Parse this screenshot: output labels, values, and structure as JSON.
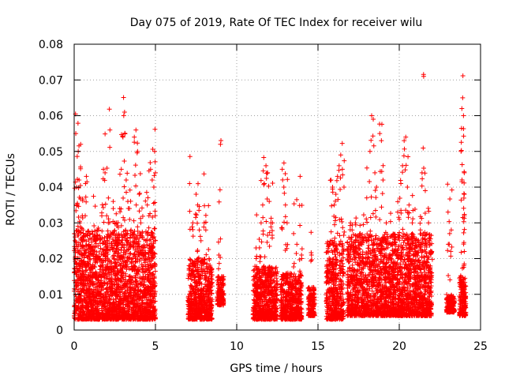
{
  "chart_data": {
    "type": "scatter",
    "title": "Day 075 of 2019, Rate Of TEC Index for receiver wilu",
    "xlabel": "GPS time / hours",
    "ylabel": "ROTI / TECUs",
    "xlim": [
      0,
      25
    ],
    "ylim": [
      0,
      0.08
    ],
    "xticks": [
      0,
      5,
      10,
      15,
      20,
      25
    ],
    "xtick_labels": [
      "0",
      "5",
      "10",
      "15",
      "20",
      "25"
    ],
    "yticks": [
      0,
      0.01,
      0.02,
      0.03,
      0.04,
      0.05,
      0.06,
      0.07,
      0.08
    ],
    "ytick_labels": [
      "0",
      "0.01",
      "0.02",
      "0.03",
      "0.04",
      "0.05",
      "0.06",
      "0.07",
      "0.08"
    ],
    "grid": true,
    "marker": "+",
    "marker_color": "#ff0000",
    "series": [
      {
        "name": "ROTI",
        "points": [
          [
            0.05,
            0.025
          ],
          [
            0.1,
            0.055
          ],
          [
            0.15,
            0.04
          ],
          [
            0.2,
            0.035
          ],
          [
            0.25,
            0.05
          ],
          [
            0.3,
            0.042
          ],
          [
            0.35,
            0.03
          ],
          [
            0.4,
            0.052
          ],
          [
            0.5,
            0.032
          ],
          [
            0.55,
            0.028
          ],
          [
            0.6,
            0.021
          ],
          [
            0.7,
            0.041
          ],
          [
            0.75,
            0.043
          ],
          [
            0.8,
            0.018
          ],
          [
            0.9,
            0.015
          ],
          [
            1.0,
            0.022
          ],
          [
            1.2,
            0.026
          ],
          [
            1.3,
            0.025
          ],
          [
            1.5,
            0.02
          ],
          [
            1.6,
            0.018
          ],
          [
            1.7,
            0.032
          ],
          [
            1.8,
            0.045
          ],
          [
            1.9,
            0.044
          ],
          [
            2.0,
            0.032
          ],
          [
            2.1,
            0.03
          ],
          [
            2.2,
            0.056
          ],
          [
            2.4,
            0.036
          ],
          [
            2.5,
            0.03
          ],
          [
            2.6,
            0.03
          ],
          [
            2.7,
            0.026
          ],
          [
            2.8,
            0.034
          ],
          [
            2.9,
            0.045
          ],
          [
            3.0,
            0.054
          ],
          [
            3.05,
            0.06
          ],
          [
            3.1,
            0.061
          ],
          [
            3.2,
            0.042
          ],
          [
            3.3,
            0.036
          ],
          [
            3.4,
            0.034
          ],
          [
            3.5,
            0.028
          ],
          [
            3.6,
            0.02
          ],
          [
            3.7,
            0.054
          ],
          [
            3.8,
            0.056
          ],
          [
            3.9,
            0.05
          ],
          [
            4.0,
            0.038
          ],
          [
            4.1,
            0.03
          ],
          [
            4.2,
            0.026
          ],
          [
            4.4,
            0.025
          ],
          [
            4.5,
            0.035
          ],
          [
            4.6,
            0.032
          ],
          [
            4.7,
            0.045
          ],
          [
            4.8,
            0.042
          ],
          [
            4.9,
            0.04
          ],
          [
            4.95,
            0.05
          ],
          [
            5.0,
            0.044
          ],
          [
            7.1,
            0.041
          ],
          [
            7.3,
            0.03
          ],
          [
            7.5,
            0.038
          ],
          [
            7.6,
            0.035
          ],
          [
            7.7,
            0.028
          ],
          [
            7.8,
            0.025
          ],
          [
            8.0,
            0.03
          ],
          [
            8.1,
            0.028
          ],
          [
            8.3,
            0.02
          ],
          [
            8.9,
            0.021
          ],
          [
            9.0,
            0.052
          ],
          [
            11.2,
            0.02
          ],
          [
            11.4,
            0.023
          ],
          [
            11.5,
            0.03
          ],
          [
            11.6,
            0.035
          ],
          [
            11.7,
            0.041
          ],
          [
            11.8,
            0.046
          ],
          [
            11.9,
            0.044
          ],
          [
            12.0,
            0.036
          ],
          [
            12.1,
            0.03
          ],
          [
            12.2,
            0.03
          ],
          [
            12.8,
            0.045
          ],
          [
            12.9,
            0.04
          ],
          [
            13.0,
            0.035
          ],
          [
            13.1,
            0.03
          ],
          [
            13.5,
            0.027
          ],
          [
            13.7,
            0.024
          ],
          [
            13.9,
            0.043
          ],
          [
            14.0,
            0.02
          ],
          [
            14.6,
            0.021
          ],
          [
            15.8,
            0.042
          ],
          [
            15.9,
            0.04
          ],
          [
            16.0,
            0.035
          ],
          [
            16.1,
            0.038
          ],
          [
            16.2,
            0.043
          ],
          [
            16.3,
            0.046
          ],
          [
            16.4,
            0.049
          ],
          [
            16.5,
            0.045
          ],
          [
            16.6,
            0.04
          ],
          [
            17.0,
            0.03
          ],
          [
            17.1,
            0.028
          ],
          [
            17.3,
            0.03
          ],
          [
            17.6,
            0.027
          ],
          [
            17.8,
            0.025
          ],
          [
            18.0,
            0.037
          ],
          [
            18.2,
            0.05
          ],
          [
            18.3,
            0.06
          ],
          [
            18.4,
            0.059
          ],
          [
            18.5,
            0.044
          ],
          [
            18.6,
            0.04
          ],
          [
            18.8,
            0.055
          ],
          [
            18.9,
            0.053
          ],
          [
            19.0,
            0.042
          ],
          [
            19.2,
            0.03
          ],
          [
            19.5,
            0.02
          ],
          [
            19.7,
            0.022
          ],
          [
            19.9,
            0.033
          ],
          [
            20.0,
            0.031
          ],
          [
            20.1,
            0.041
          ],
          [
            20.2,
            0.046
          ],
          [
            20.3,
            0.053
          ],
          [
            20.4,
            0.054
          ],
          [
            20.5,
            0.04
          ],
          [
            20.6,
            0.035
          ],
          [
            20.8,
            0.03
          ],
          [
            21.0,
            0.022
          ],
          [
            21.3,
            0.028
          ],
          [
            21.4,
            0.044
          ],
          [
            21.5,
            0.071
          ],
          [
            21.6,
            0.039
          ],
          [
            21.8,
            0.03
          ],
          [
            22.0,
            0.022
          ],
          [
            23.0,
            0.033
          ],
          [
            23.1,
            0.027
          ],
          [
            23.2,
            0.028
          ],
          [
            23.8,
            0.05
          ],
          [
            23.85,
            0.062
          ],
          [
            23.9,
            0.065
          ],
          [
            23.95,
            0.06
          ],
          [
            24.0,
            0.044
          ],
          [
            24.0,
            0.038
          ],
          [
            24.0,
            0.032
          ],
          [
            24.0,
            0.022
          ]
        ],
        "dense_clusters": [
          {
            "x_range": [
              0.0,
              5.0
            ],
            "y_range": [
              0.003,
              0.028
            ]
          },
          {
            "x_range": [
              7.0,
              8.5
            ],
            "y_range": [
              0.003,
              0.02
            ]
          },
          {
            "x_range": [
              8.8,
              9.2
            ],
            "y_range": [
              0.007,
              0.015
            ]
          },
          {
            "x_range": [
              11.0,
              12.5
            ],
            "y_range": [
              0.003,
              0.018
            ]
          },
          {
            "x_range": [
              12.7,
              14.0
            ],
            "y_range": [
              0.003,
              0.016
            ]
          },
          {
            "x_range": [
              14.4,
              14.8
            ],
            "y_range": [
              0.004,
              0.012
            ]
          },
          {
            "x_range": [
              15.5,
              16.6
            ],
            "y_range": [
              0.003,
              0.025
            ]
          },
          {
            "x_range": [
              16.8,
              22.0
            ],
            "y_range": [
              0.004,
              0.027
            ]
          },
          {
            "x_range": [
              22.9,
              23.4
            ],
            "y_range": [
              0.005,
              0.01
            ]
          },
          {
            "x_range": [
              23.7,
              24.1
            ],
            "y_range": [
              0.004,
              0.015
            ]
          }
        ]
      }
    ]
  }
}
